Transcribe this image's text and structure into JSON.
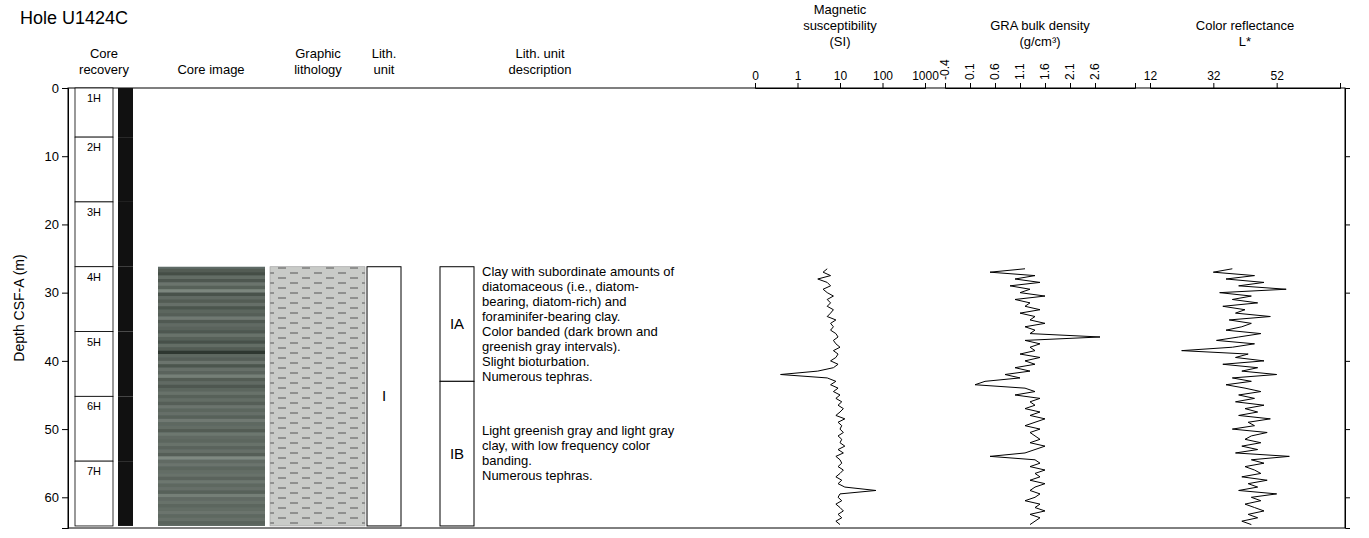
{
  "title": "Hole U1424C",
  "depth_axis": {
    "label": "Depth CSF-A (m)",
    "ylim": [
      0,
      64.5
    ],
    "yticks": [
      0,
      10,
      20,
      30,
      40,
      50,
      60
    ]
  },
  "column_heads": {
    "recovery": "Core recovery",
    "image": "Core image",
    "lithology": "Graphic lithology",
    "unit": "Lith. unit",
    "description": "Lith. unit description"
  },
  "cores": [
    {
      "name": "1H",
      "top": 0,
      "bottom": 7.2
    },
    {
      "name": "2H",
      "top": 7.2,
      "bottom": 16.7
    },
    {
      "name": "3H",
      "top": 16.7,
      "bottom": 26.2
    },
    {
      "name": "4H",
      "top": 26.2,
      "bottom": 35.7
    },
    {
      "name": "5H",
      "top": 35.7,
      "bottom": 45.2
    },
    {
      "name": "6H",
      "top": 45.2,
      "bottom": 54.7
    },
    {
      "name": "7H",
      "top": 54.7,
      "bottom": 64.2
    }
  ],
  "units": [
    {
      "name": "I",
      "top": 26.2,
      "bottom": 64.2
    }
  ],
  "subunits": [
    {
      "name": "IA",
      "top": 26.2,
      "bottom": 43.0,
      "description": [
        "Clay with subordinate amounts of diatomaceous (i.e., diatom-bearing, diatom-rich) and foraminifer-bearing clay.",
        "Color banded (dark brown and greenish gray intervals).",
        "Slight bioturbation.",
        "Numerous tephras."
      ]
    },
    {
      "name": "IB",
      "top": 43.0,
      "bottom": 64.2,
      "description": [
        "Light greenish gray and light gray clay, with low frequency color banding.",
        "Numerous tephras."
      ]
    }
  ],
  "chart_data": [
    {
      "type": "line",
      "title": "Magnetic susceptibility",
      "xlabel": "(SI)",
      "log": "x",
      "xlim": [
        0.1,
        1000
      ],
      "xticks": [
        {
          "value": 0.1,
          "label": "0"
        },
        1,
        10,
        100,
        1000
      ],
      "y": [
        26.5,
        27,
        27.5,
        28,
        28.5,
        29,
        29.5,
        30,
        30.5,
        31,
        31.5,
        32,
        32.5,
        33,
        33.5,
        34,
        34.5,
        35,
        35.5,
        36,
        36.5,
        37,
        37.5,
        38,
        38.5,
        39,
        39.5,
        40,
        40.5,
        41,
        41.5,
        42,
        42.5,
        43,
        43.5,
        44,
        44.5,
        45,
        45.5,
        46,
        46.5,
        47,
        47.5,
        48,
        48.5,
        49,
        49.5,
        50,
        50.5,
        51,
        51.5,
        52,
        52.5,
        53,
        53.5,
        54,
        54.5,
        55,
        55.5,
        56,
        56.5,
        57,
        57.5,
        58,
        58.5,
        59,
        59.5,
        60,
        60.5,
        61,
        61.5,
        62,
        62.5,
        63,
        63.5,
        64
      ],
      "series": [
        {
          "color": "#000000",
          "values": [
            5,
            4,
            6,
            3,
            5,
            6,
            4,
            5,
            7,
            5,
            6,
            5,
            7,
            6,
            5,
            8,
            6,
            7,
            6,
            8,
            9,
            7,
            8,
            10,
            7,
            9,
            8,
            6,
            9,
            7,
            3,
            0.4,
            5,
            8,
            6,
            9,
            7,
            10,
            8,
            11,
            9,
            12,
            10,
            8,
            13,
            9,
            11,
            10,
            12,
            9,
            11,
            10,
            13,
            9,
            12,
            8,
            10,
            11,
            9,
            12,
            10,
            8,
            11,
            9,
            13,
            70,
            10,
            9,
            11,
            8,
            10,
            12,
            9,
            11,
            8,
            10
          ]
        }
      ]
    },
    {
      "type": "line",
      "title": "GRA bulk density",
      "xlabel": "(g/cm³)",
      "xlim": [
        -0.4,
        3.4
      ],
      "xticks": [
        -0.4,
        0.1,
        0.6,
        1.1,
        1.6,
        2.1,
        2.6
      ],
      "y": [
        26.5,
        27,
        27.5,
        28,
        28.5,
        29,
        29.5,
        30,
        30.5,
        31,
        31.5,
        32,
        32.5,
        33,
        33.5,
        34,
        34.5,
        35,
        35.5,
        36,
        36.5,
        37,
        37.5,
        38,
        38.5,
        39,
        39.5,
        40,
        40.5,
        41,
        41.5,
        42,
        42.5,
        43,
        43.5,
        44,
        44.5,
        45,
        45.5,
        46,
        46.5,
        47,
        47.5,
        48,
        48.5,
        49,
        49.5,
        50,
        50.5,
        51,
        51.5,
        52,
        52.5,
        53,
        53.5,
        54,
        54.5,
        55,
        55.5,
        56,
        56.5,
        57,
        57.5,
        58,
        58.5,
        59,
        59.5,
        60,
        60.5,
        61,
        61.5,
        62,
        62.5,
        63,
        63.5,
        64
      ],
      "series": [
        {
          "color": "#000000",
          "values": [
            1.2,
            0.5,
            1.4,
            1.0,
            1.5,
            0.9,
            1.3,
            1.1,
            1.6,
            1.0,
            1.3,
            1.2,
            1.5,
            1.1,
            1.4,
            1.3,
            1.6,
            1.2,
            1.4,
            1.3,
            2.7,
            1.2,
            1.5,
            1.3,
            1.4,
            1.1,
            1.5,
            1.2,
            1.4,
            1.0,
            1.3,
            0.8,
            1.1,
            0.4,
            0.2,
            1.2,
            1.4,
            1.0,
            1.5,
            1.3,
            1.4,
            1.2,
            1.5,
            1.3,
            1.6,
            1.4,
            1.2,
            1.5,
            1.3,
            1.4,
            1.5,
            1.3,
            1.6,
            1.4,
            1.2,
            0.5,
            1.4,
            1.5,
            1.3,
            1.6,
            1.4,
            1.5,
            1.3,
            1.6,
            1.4,
            1.3,
            1.5,
            1.4,
            1.2,
            1.5,
            1.4,
            1.6,
            1.3,
            1.5,
            1.4,
            1.3
          ]
        }
      ]
    },
    {
      "type": "line",
      "title": "Color reflectance",
      "xlabel": "L*",
      "xlim": [
        12,
        72
      ],
      "xticks": [
        12,
        32,
        52
      ],
      "y": [
        26.5,
        27,
        27.5,
        28,
        28.5,
        29,
        29.5,
        30,
        30.5,
        31,
        31.5,
        32,
        32.5,
        33,
        33.5,
        34,
        34.5,
        35,
        35.5,
        36,
        36.5,
        37,
        37.5,
        38,
        38.5,
        39,
        39.5,
        40,
        40.5,
        41,
        41.5,
        42,
        42.5,
        43,
        43.5,
        44,
        44.5,
        45,
        45.5,
        46,
        46.5,
        47,
        47.5,
        48,
        48.5,
        49,
        49.5,
        50,
        50.5,
        51,
        51.5,
        52,
        52.5,
        53,
        53.5,
        54,
        54.5,
        55,
        55.5,
        56,
        56.5,
        57,
        57.5,
        58,
        58.5,
        59,
        59.5,
        60,
        60.5,
        61,
        61.5,
        62,
        62.5,
        63,
        63.5,
        64
      ],
      "series": [
        {
          "color": "#000000",
          "values": [
            38,
            32,
            45,
            36,
            48,
            40,
            55,
            34,
            44,
            38,
            46,
            35,
            42,
            39,
            50,
            37,
            44,
            41,
            36,
            47,
            40,
            33,
            45,
            38,
            22,
            43,
            39,
            48,
            35,
            46,
            41,
            52,
            38,
            44,
            36,
            42,
            47,
            40,
            45,
            39,
            48,
            42,
            46,
            40,
            50,
            43,
            45,
            38,
            49,
            44,
            42,
            47,
            41,
            46,
            39,
            56,
            44,
            48,
            42,
            45,
            47,
            41,
            49,
            43,
            46,
            40,
            52,
            44,
            47,
            42,
            45,
            48,
            43,
            46,
            41,
            44
          ]
        }
      ]
    }
  ]
}
